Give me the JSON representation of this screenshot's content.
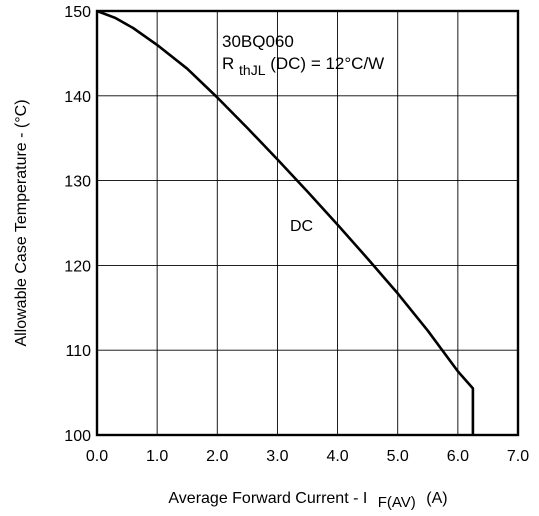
{
  "chart_data": {
    "type": "line",
    "title": "",
    "xlabel": {
      "main": "Average Forward Current - I",
      "sub": "F(AV)",
      "unit": "(A)"
    },
    "ylabel": "Allowable Case Temperature - (°C)",
    "xlim": [
      0,
      7
    ],
    "ylim": [
      100,
      150
    ],
    "x_ticks": [
      "0.0",
      "1.0",
      "2.0",
      "3.0",
      "4.0",
      "5.0",
      "6.0",
      "7.0"
    ],
    "y_ticks": [
      "100",
      "110",
      "120",
      "130",
      "140",
      "150"
    ],
    "grid": true,
    "annotations": {
      "part_number": "30BQ060",
      "rth_prefix": "R",
      "rth_sub": "thJL",
      "rth_suffix": " (DC) = 12°C/W",
      "curve_label": "DC"
    },
    "series": [
      {
        "name": "DC",
        "x": [
          0.0,
          0.3,
          0.6,
          1.0,
          1.5,
          2.0,
          2.5,
          3.0,
          3.5,
          4.0,
          4.5,
          5.0,
          5.5,
          6.0,
          6.25,
          6.25
        ],
        "y": [
          150.0,
          149.2,
          148.0,
          146.0,
          143.2,
          139.8,
          136.2,
          132.5,
          128.7,
          124.8,
          120.8,
          116.7,
          112.3,
          107.5,
          105.5,
          100.0
        ]
      }
    ]
  }
}
